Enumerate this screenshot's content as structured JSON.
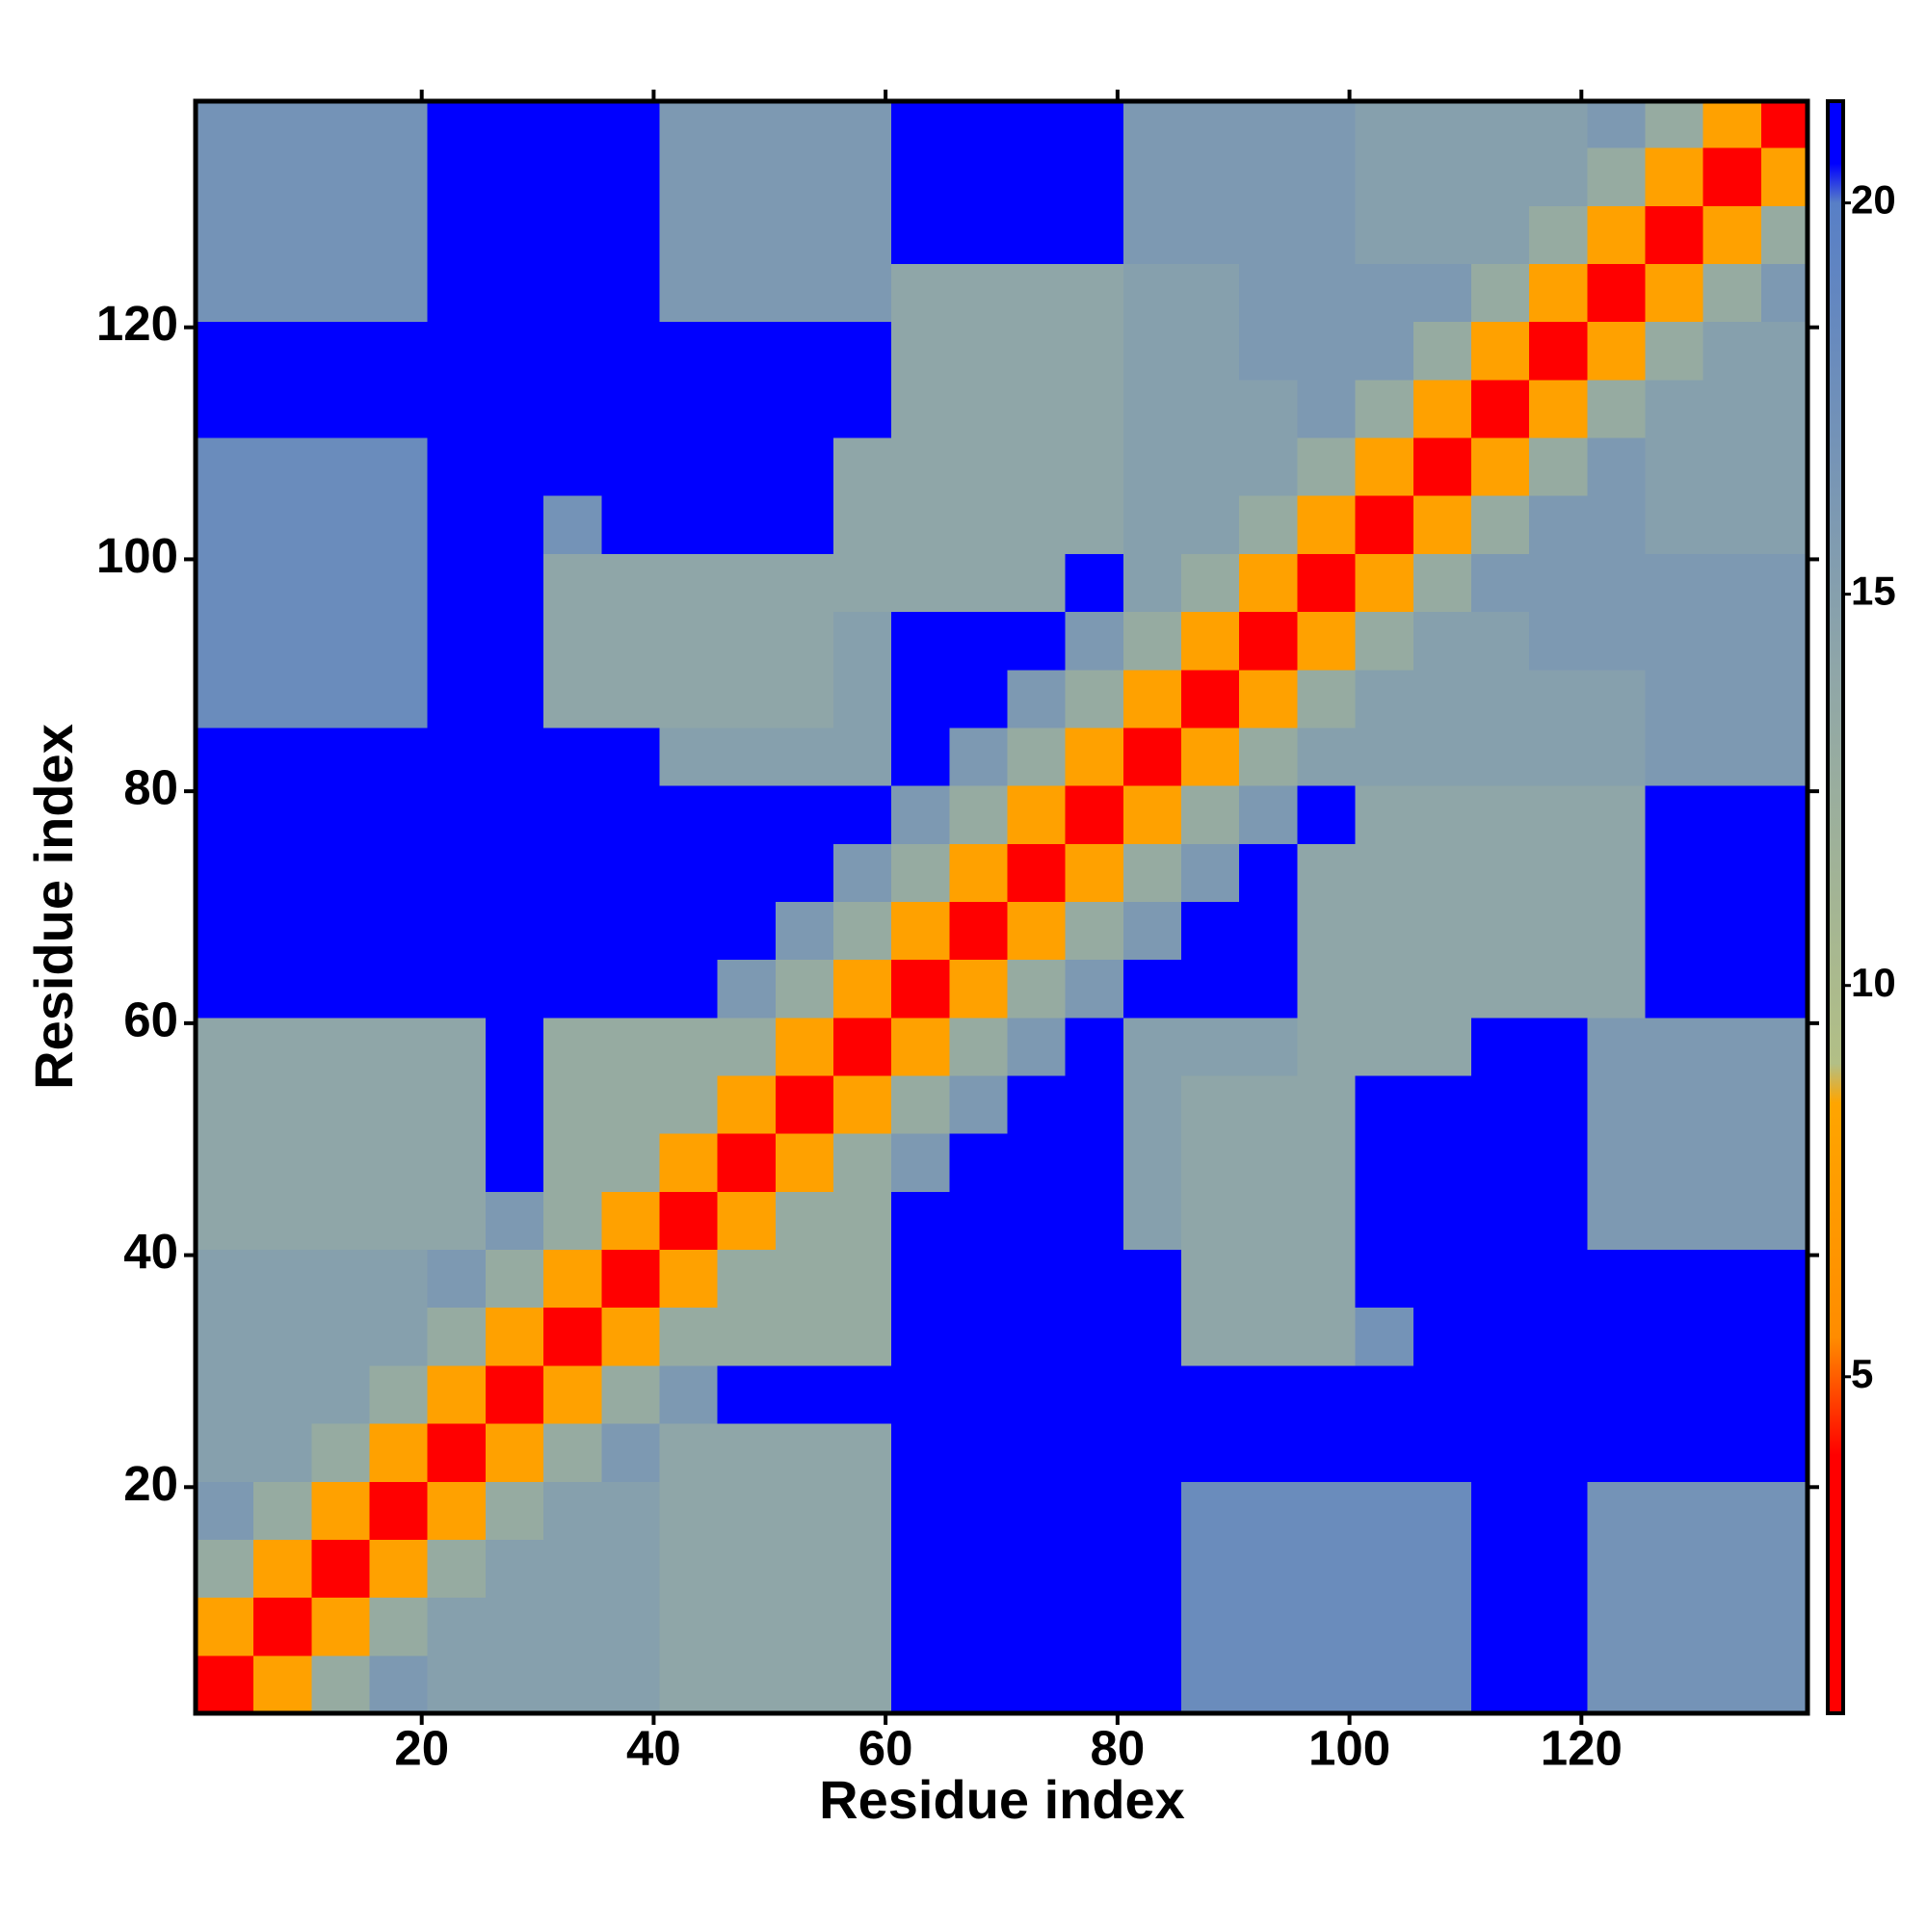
{
  "chart_data": {
    "type": "heatmap",
    "xlabel": "Residue index",
    "ylabel": "Residue index",
    "xlim": [
      0.5,
      139.5
    ],
    "ylim": [
      0.5,
      139.5
    ],
    "xticks": [
      20,
      40,
      60,
      80,
      100,
      120
    ],
    "yticks": [
      20,
      40,
      60,
      80,
      100,
      120
    ],
    "bins": [
      0.5,
      5.5,
      10.5,
      15.5,
      20.5,
      25.5,
      30.5,
      35.5,
      40.5,
      45.5,
      50.5,
      55.5,
      60.5,
      65.5,
      70.5,
      75.5,
      80.5,
      85.5,
      90.5,
      95.5,
      100.5,
      105.5,
      110.5,
      115.5,
      120.5,
      125.5,
      130.5,
      135.5,
      139.5
    ],
    "clim": [
      0.7,
      21.3
    ],
    "cticks": [
      5,
      10,
      15,
      20
    ],
    "colorscale": [
      [
        0.7,
        "#ff0000"
      ],
      [
        4,
        "#ff0000"
      ],
      [
        5.5,
        "#ff8c00"
      ],
      [
        8.5,
        "#ffa500"
      ],
      [
        9,
        "#b2bf86"
      ],
      [
        14,
        "#8fa6a8"
      ],
      [
        20,
        "#587fc6"
      ],
      [
        20.5,
        "#0000ff"
      ],
      [
        21.3,
        "#0000ff"
      ]
    ],
    "values": [
      [
        3,
        8,
        13,
        16,
        15,
        15,
        15,
        15,
        14,
        14,
        14,
        14,
        21,
        21,
        21,
        21,
        21,
        18,
        18,
        18,
        18,
        18,
        21,
        21,
        17,
        17,
        17,
        17
      ],
      [
        8,
        3,
        8,
        13,
        15,
        15,
        15,
        15,
        14,
        14,
        14,
        14,
        21,
        21,
        21,
        21,
        21,
        18,
        18,
        18,
        18,
        18,
        21,
        21,
        17,
        17,
        17,
        17
      ],
      [
        13,
        8,
        3,
        8,
        13,
        15,
        15,
        15,
        14,
        14,
        14,
        14,
        21,
        21,
        21,
        21,
        21,
        18,
        18,
        18,
        18,
        18,
        21,
        21,
        17,
        17,
        17,
        17
      ],
      [
        16,
        13,
        8,
        3,
        8,
        13,
        15,
        15,
        14,
        14,
        14,
        14,
        21,
        21,
        21,
        21,
        21,
        18,
        18,
        18,
        18,
        18,
        21,
        21,
        17,
        17,
        17,
        17
      ],
      [
        15,
        15,
        13,
        8,
        3,
        8,
        13,
        16,
        14,
        14,
        14,
        14,
        21,
        21,
        21,
        21,
        21,
        21,
        21,
        21,
        21,
        21,
        21,
        21,
        21,
        21,
        21,
        21
      ],
      [
        15,
        15,
        15,
        13,
        8,
        3,
        8,
        13,
        16,
        21,
        21,
        21,
        21,
        21,
        21,
        21,
        21,
        21,
        21,
        21,
        21,
        21,
        21,
        21,
        21,
        21,
        21,
        21
      ],
      [
        15,
        15,
        15,
        15,
        13,
        8,
        3,
        8,
        13,
        13,
        13,
        13,
        21,
        21,
        21,
        21,
        21,
        14,
        14,
        14,
        17,
        21,
        21,
        21,
        21,
        21,
        21,
        21
      ],
      [
        15,
        15,
        15,
        15,
        16,
        13,
        8,
        3,
        8,
        13,
        13,
        13,
        21,
        21,
        21,
        21,
        21,
        14,
        14,
        14,
        21,
        21,
        21,
        21,
        21,
        21,
        21,
        21
      ],
      [
        14,
        14,
        14,
        14,
        14,
        16,
        13,
        8,
        3,
        8,
        13,
        13,
        21,
        21,
        21,
        21,
        15,
        14,
        14,
        14,
        21,
        21,
        21,
        21,
        16,
        16,
        16,
        16
      ],
      [
        14,
        14,
        14,
        14,
        14,
        21,
        13,
        13,
        8,
        3,
        8,
        13,
        16,
        21,
        21,
        21,
        15,
        14,
        14,
        14,
        21,
        21,
        21,
        21,
        16,
        16,
        16,
        16
      ],
      [
        14,
        14,
        14,
        14,
        14,
        21,
        13,
        13,
        13,
        8,
        3,
        8,
        13,
        16,
        21,
        21,
        15,
        14,
        14,
        14,
        21,
        21,
        21,
        21,
        16,
        16,
        16,
        16
      ],
      [
        14,
        14,
        14,
        14,
        14,
        21,
        13,
        13,
        13,
        13,
        8,
        3,
        8,
        13,
        16,
        21,
        15,
        15,
        15,
        14,
        14,
        14,
        21,
        21,
        16,
        16,
        16,
        16
      ],
      [
        21,
        21,
        21,
        21,
        21,
        21,
        21,
        21,
        21,
        16,
        13,
        8,
        3,
        8,
        13,
        16,
        21,
        21,
        21,
        14,
        14,
        14,
        14,
        14,
        14,
        21,
        21,
        21
      ],
      [
        21,
        21,
        21,
        21,
        21,
        21,
        21,
        21,
        21,
        21,
        16,
        13,
        8,
        3,
        8,
        13,
        16,
        21,
        21,
        14,
        14,
        14,
        14,
        14,
        14,
        21,
        21,
        21
      ],
      [
        21,
        21,
        21,
        21,
        21,
        21,
        21,
        21,
        21,
        21,
        21,
        16,
        13,
        8,
        3,
        8,
        13,
        16,
        21,
        14,
        14,
        14,
        14,
        14,
        14,
        21,
        21,
        21
      ],
      [
        21,
        21,
        21,
        21,
        21,
        21,
        21,
        21,
        21,
        21,
        21,
        21,
        16,
        13,
        8,
        3,
        8,
        13,
        16,
        21,
        14,
        14,
        14,
        14,
        14,
        21,
        21,
        21
      ],
      [
        21,
        21,
        21,
        21,
        21,
        21,
        21,
        21,
        15,
        15,
        15,
        15,
        21,
        16,
        13,
        8,
        3,
        8,
        13,
        15,
        15,
        15,
        15,
        15,
        15,
        16,
        16,
        16
      ],
      [
        18,
        18,
        18,
        18,
        21,
        21,
        14,
        14,
        14,
        14,
        14,
        15,
        21,
        21,
        16,
        13,
        8,
        3,
        8,
        13,
        15,
        15,
        15,
        15,
        15,
        16,
        16,
        16
      ],
      [
        18,
        18,
        18,
        18,
        21,
        21,
        14,
        14,
        14,
        14,
        14,
        15,
        21,
        21,
        21,
        16,
        13,
        8,
        3,
        8,
        13,
        15,
        15,
        16,
        16,
        16,
        16,
        16
      ],
      [
        18,
        18,
        18,
        18,
        21,
        21,
        14,
        14,
        14,
        14,
        14,
        14,
        14,
        14,
        14,
        21,
        15,
        13,
        8,
        3,
        8,
        13,
        16,
        16,
        16,
        16,
        16,
        16
      ],
      [
        18,
        18,
        18,
        18,
        21,
        21,
        17,
        21,
        21,
        21,
        21,
        14,
        14,
        14,
        14,
        14,
        15,
        15,
        13,
        8,
        3,
        8,
        13,
        16,
        16,
        15,
        15,
        15
      ],
      [
        18,
        18,
        18,
        18,
        21,
        21,
        21,
        21,
        21,
        21,
        21,
        14,
        14,
        14,
        14,
        14,
        15,
        15,
        15,
        13,
        8,
        3,
        8,
        13,
        16,
        15,
        15,
        15
      ],
      [
        21,
        21,
        21,
        21,
        21,
        21,
        21,
        21,
        21,
        21,
        21,
        21,
        14,
        14,
        14,
        14,
        15,
        15,
        15,
        16,
        13,
        8,
        3,
        8,
        13,
        15,
        15,
        15
      ],
      [
        21,
        21,
        21,
        21,
        21,
        21,
        21,
        21,
        21,
        21,
        21,
        21,
        14,
        14,
        14,
        14,
        15,
        15,
        16,
        16,
        16,
        13,
        8,
        3,
        8,
        13,
        15,
        15
      ],
      [
        17,
        17,
        17,
        17,
        21,
        21,
        21,
        21,
        16,
        16,
        16,
        16,
        14,
        14,
        14,
        14,
        15,
        15,
        16,
        16,
        16,
        16,
        13,
        8,
        3,
        8,
        13,
        16
      ],
      [
        17,
        17,
        17,
        17,
        21,
        21,
        21,
        21,
        16,
        16,
        16,
        16,
        21,
        21,
        21,
        21,
        16,
        16,
        16,
        16,
        15,
        15,
        15,
        13,
        8,
        3,
        8,
        13
      ],
      [
        17,
        17,
        17,
        17,
        21,
        21,
        21,
        21,
        16,
        16,
        16,
        16,
        21,
        21,
        21,
        21,
        16,
        16,
        16,
        16,
        15,
        15,
        15,
        15,
        13,
        8,
        3,
        8
      ],
      [
        17,
        17,
        17,
        17,
        21,
        21,
        21,
        21,
        16,
        16,
        16,
        16,
        21,
        21,
        21,
        21,
        16,
        16,
        16,
        16,
        15,
        15,
        15,
        15,
        16,
        13,
        8,
        3
      ]
    ]
  }
}
